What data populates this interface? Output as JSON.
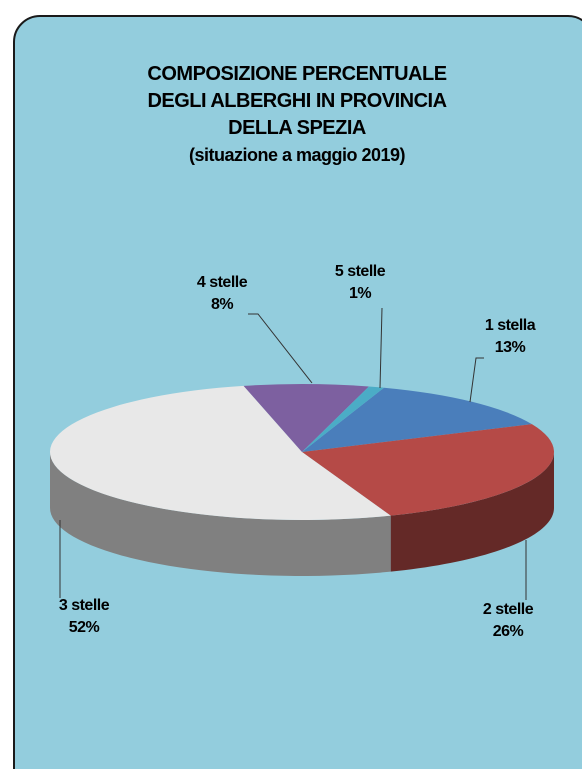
{
  "chart_data": {
    "type": "pie3d",
    "title": [
      "COMPOSIZIONE PERCENTUALE",
      "DEGLI ALBERGHI IN PROVINCIA",
      "DELLA SPEZIA"
    ],
    "subtitle": "(situazione a maggio 2019)",
    "categories": [
      "1 stella",
      "2 stelle",
      "3 stelle",
      "4 stelle",
      "5 stelle"
    ],
    "values": [
      13,
      26,
      52,
      8,
      1
    ],
    "value_labels": [
      "13%",
      "26%",
      "52%",
      "8%",
      "1%"
    ],
    "colors": [
      "#4a7ebb",
      "#b54a47",
      "#e8e8e8",
      "#7d60a0",
      "#4bacc6"
    ]
  }
}
